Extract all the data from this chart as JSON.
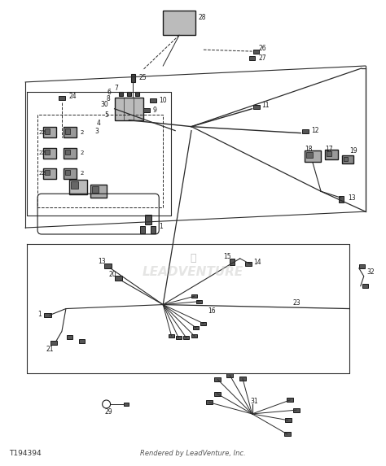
{
  "bg_color": "#ffffff",
  "line_color": "#2a2a2a",
  "comp_color": "#1a1a1a",
  "label_color": "#1a1a1a",
  "title_bottom_left": "T194394",
  "title_bottom_center": "Rendered by LeadVenture, Inc.",
  "watermark": "LEADVENTURE"
}
